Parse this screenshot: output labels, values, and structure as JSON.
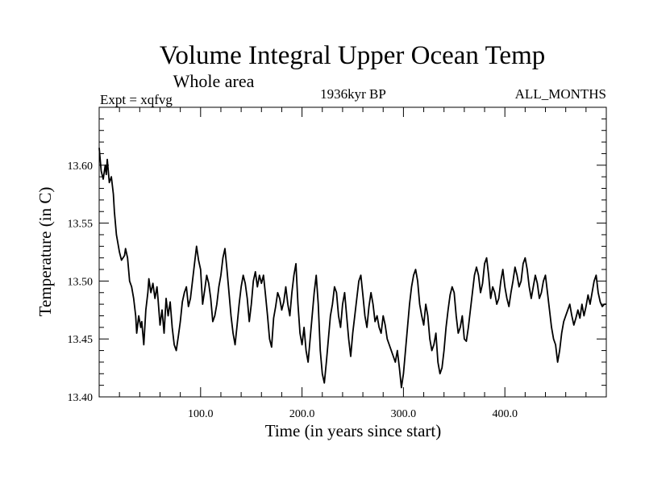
{
  "chart_data": {
    "type": "line",
    "title": "Volume Integral Upper Ocean Temp",
    "subtitle": "Whole area",
    "header_left": "Expt = xqfvg",
    "header_center": "1936kyr BP",
    "header_right": "ALL_MONTHS",
    "xlabel": "Time (in years since start)",
    "ylabel": "Temperature (in C)",
    "xlim": [
      0,
      500
    ],
    "ylim": [
      13.4,
      13.65
    ],
    "x_ticks": [
      100,
      200,
      300,
      400
    ],
    "x_tick_labels": [
      "100.0",
      "200.0",
      "300.0",
      "400.0"
    ],
    "y_ticks": [
      13.4,
      13.45,
      13.5,
      13.55,
      13.6
    ],
    "y_tick_labels": [
      "13.40",
      "13.45",
      "13.50",
      "13.55",
      "13.60"
    ],
    "grid": false,
    "series": [
      {
        "name": "Temperature",
        "points": [
          [
            0,
            13.615
          ],
          [
            2,
            13.595
          ],
          [
            4,
            13.588
          ],
          [
            6,
            13.6
          ],
          [
            7,
            13.592
          ],
          [
            8,
            13.605
          ],
          [
            10,
            13.585
          ],
          [
            12,
            13.59
          ],
          [
            14,
            13.575
          ],
          [
            15,
            13.56
          ],
          [
            17,
            13.54
          ],
          [
            20,
            13.525
          ],
          [
            22,
            13.518
          ],
          [
            25,
            13.522
          ],
          [
            26,
            13.528
          ],
          [
            28,
            13.52
          ],
          [
            30,
            13.5
          ],
          [
            32,
            13.495
          ],
          [
            34,
            13.485
          ],
          [
            36,
            13.47
          ],
          [
            37,
            13.455
          ],
          [
            39,
            13.47
          ],
          [
            41,
            13.46
          ],
          [
            42,
            13.465
          ],
          [
            44,
            13.445
          ],
          [
            46,
            13.475
          ],
          [
            48,
            13.49
          ],
          [
            49,
            13.502
          ],
          [
            51,
            13.49
          ],
          [
            53,
            13.498
          ],
          [
            55,
            13.485
          ],
          [
            57,
            13.495
          ],
          [
            58,
            13.485
          ],
          [
            60,
            13.462
          ],
          [
            62,
            13.475
          ],
          [
            64,
            13.455
          ],
          [
            66,
            13.485
          ],
          [
            68,
            13.47
          ],
          [
            70,
            13.482
          ],
          [
            72,
            13.46
          ],
          [
            74,
            13.445
          ],
          [
            76,
            13.44
          ],
          [
            78,
            13.452
          ],
          [
            80,
            13.465
          ],
          [
            82,
            13.482
          ],
          [
            84,
            13.49
          ],
          [
            86,
            13.495
          ],
          [
            88,
            13.478
          ],
          [
            90,
            13.485
          ],
          [
            92,
            13.5
          ],
          [
            94,
            13.515
          ],
          [
            96,
            13.53
          ],
          [
            98,
            13.518
          ],
          [
            100,
            13.51
          ],
          [
            102,
            13.48
          ],
          [
            104,
            13.492
          ],
          [
            106,
            13.505
          ],
          [
            108,
            13.498
          ],
          [
            110,
            13.485
          ],
          [
            112,
            13.465
          ],
          [
            114,
            13.47
          ],
          [
            116,
            13.48
          ],
          [
            118,
            13.495
          ],
          [
            120,
            13.505
          ],
          [
            122,
            13.52
          ],
          [
            124,
            13.528
          ],
          [
            126,
            13.51
          ],
          [
            128,
            13.49
          ],
          [
            130,
            13.47
          ],
          [
            132,
            13.455
          ],
          [
            134,
            13.445
          ],
          [
            136,
            13.462
          ],
          [
            138,
            13.48
          ],
          [
            140,
            13.495
          ],
          [
            142,
            13.505
          ],
          [
            144,
            13.498
          ],
          [
            146,
            13.485
          ],
          [
            148,
            13.465
          ],
          [
            150,
            13.48
          ],
          [
            152,
            13.5
          ],
          [
            154,
            13.508
          ],
          [
            156,
            13.495
          ],
          [
            158,
            13.505
          ],
          [
            160,
            13.498
          ],
          [
            162,
            13.505
          ],
          [
            164,
            13.488
          ],
          [
            166,
            13.47
          ],
          [
            168,
            13.45
          ],
          [
            170,
            13.443
          ],
          [
            172,
            13.468
          ],
          [
            174,
            13.478
          ],
          [
            176,
            13.49
          ],
          [
            178,
            13.485
          ],
          [
            180,
            13.475
          ],
          [
            182,
            13.482
          ],
          [
            184,
            13.495
          ],
          [
            186,
            13.48
          ],
          [
            188,
            13.47
          ],
          [
            190,
            13.49
          ],
          [
            192,
            13.505
          ],
          [
            194,
            13.515
          ],
          [
            196,
            13.48
          ],
          [
            198,
            13.455
          ],
          [
            200,
            13.445
          ],
          [
            202,
            13.46
          ],
          [
            204,
            13.44
          ],
          [
            206,
            13.43
          ],
          [
            208,
            13.45
          ],
          [
            210,
            13.47
          ],
          [
            212,
            13.49
          ],
          [
            214,
            13.505
          ],
          [
            216,
            13.48
          ],
          [
            218,
            13.44
          ],
          [
            220,
            13.42
          ],
          [
            222,
            13.412
          ],
          [
            224,
            13.43
          ],
          [
            226,
            13.45
          ],
          [
            228,
            13.47
          ],
          [
            230,
            13.48
          ],
          [
            232,
            13.495
          ],
          [
            234,
            13.49
          ],
          [
            236,
            13.47
          ],
          [
            238,
            13.46
          ],
          [
            240,
            13.48
          ],
          [
            242,
            13.49
          ],
          [
            244,
            13.47
          ],
          [
            246,
            13.45
          ],
          [
            248,
            13.435
          ],
          [
            250,
            13.455
          ],
          [
            252,
            13.47
          ],
          [
            254,
            13.485
          ],
          [
            256,
            13.5
          ],
          [
            258,
            13.505
          ],
          [
            260,
            13.488
          ],
          [
            262,
            13.47
          ],
          [
            264,
            13.46
          ],
          [
            266,
            13.478
          ],
          [
            268,
            13.49
          ],
          [
            270,
            13.48
          ],
          [
            272,
            13.465
          ],
          [
            274,
            13.47
          ],
          [
            276,
            13.46
          ],
          [
            278,
            13.455
          ],
          [
            280,
            13.47
          ],
          [
            282,
            13.462
          ],
          [
            284,
            13.45
          ],
          [
            286,
            13.445
          ],
          [
            288,
            13.44
          ],
          [
            290,
            13.435
          ],
          [
            292,
            13.43
          ],
          [
            294,
            13.44
          ],
          [
            296,
            13.425
          ],
          [
            298,
            13.408
          ],
          [
            300,
            13.42
          ],
          [
            302,
            13.44
          ],
          [
            304,
            13.46
          ],
          [
            306,
            13.48
          ],
          [
            308,
            13.495
          ],
          [
            310,
            13.505
          ],
          [
            312,
            13.51
          ],
          [
            314,
            13.5
          ],
          [
            316,
            13.48
          ],
          [
            318,
            13.47
          ],
          [
            320,
            13.462
          ],
          [
            322,
            13.48
          ],
          [
            324,
            13.47
          ],
          [
            326,
            13.45
          ],
          [
            328,
            13.44
          ],
          [
            330,
            13.445
          ],
          [
            332,
            13.455
          ],
          [
            334,
            13.43
          ],
          [
            336,
            13.42
          ],
          [
            338,
            13.425
          ],
          [
            340,
            13.44
          ],
          [
            342,
            13.46
          ],
          [
            344,
            13.475
          ],
          [
            346,
            13.488
          ],
          [
            348,
            13.495
          ],
          [
            350,
            13.49
          ],
          [
            352,
            13.47
          ],
          [
            354,
            13.455
          ],
          [
            356,
            13.46
          ],
          [
            358,
            13.47
          ],
          [
            360,
            13.45
          ],
          [
            362,
            13.448
          ],
          [
            364,
            13.46
          ],
          [
            366,
            13.475
          ],
          [
            368,
            13.49
          ],
          [
            370,
            13.505
          ],
          [
            372,
            13.512
          ],
          [
            374,
            13.505
          ],
          [
            376,
            13.49
          ],
          [
            378,
            13.498
          ],
          [
            380,
            13.515
          ],
          [
            382,
            13.52
          ],
          [
            384,
            13.505
          ],
          [
            386,
            13.485
          ],
          [
            388,
            13.495
          ],
          [
            390,
            13.49
          ],
          [
            392,
            13.48
          ],
          [
            394,
            13.485
          ],
          [
            396,
            13.5
          ],
          [
            398,
            13.51
          ],
          [
            400,
            13.495
          ],
          [
            402,
            13.485
          ],
          [
            404,
            13.478
          ],
          [
            406,
            13.49
          ],
          [
            408,
            13.5
          ],
          [
            410,
            13.512
          ],
          [
            412,
            13.505
          ],
          [
            414,
            13.495
          ],
          [
            416,
            13.5
          ],
          [
            418,
            13.515
          ],
          [
            420,
            13.52
          ],
          [
            422,
            13.51
          ],
          [
            424,
            13.495
          ],
          [
            426,
            13.485
          ],
          [
            428,
            13.495
          ],
          [
            430,
            13.505
          ],
          [
            432,
            13.498
          ],
          [
            434,
            13.485
          ],
          [
            436,
            13.49
          ],
          [
            438,
            13.5
          ],
          [
            440,
            13.505
          ],
          [
            442,
            13.49
          ],
          [
            444,
            13.475
          ],
          [
            446,
            13.46
          ],
          [
            448,
            13.45
          ],
          [
            450,
            13.445
          ],
          [
            452,
            13.43
          ],
          [
            454,
            13.44
          ],
          [
            456,
            13.455
          ],
          [
            458,
            13.465
          ],
          [
            460,
            13.47
          ],
          [
            462,
            13.475
          ],
          [
            464,
            13.48
          ],
          [
            466,
            13.47
          ],
          [
            468,
            13.462
          ],
          [
            470,
            13.468
          ],
          [
            472,
            13.475
          ],
          [
            474,
            13.468
          ],
          [
            476,
            13.48
          ],
          [
            478,
            13.47
          ],
          [
            480,
            13.478
          ],
          [
            482,
            13.488
          ],
          [
            484,
            13.48
          ],
          [
            486,
            13.49
          ],
          [
            488,
            13.5
          ],
          [
            490,
            13.505
          ],
          [
            492,
            13.49
          ],
          [
            494,
            13.482
          ],
          [
            496,
            13.478
          ],
          [
            498,
            13.48
          ],
          [
            500,
            13.48
          ]
        ]
      }
    ]
  }
}
